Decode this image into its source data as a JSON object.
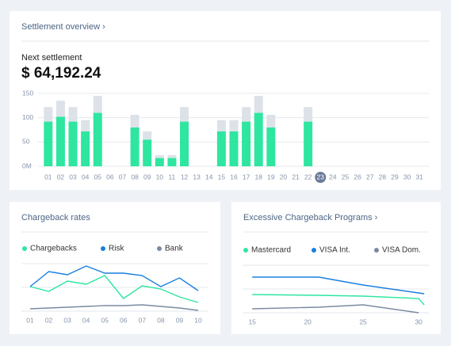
{
  "chart_data": [
    {
      "type": "bar",
      "stacked": true,
      "title": "Settlement overview ›",
      "subtitle": "Next settlement",
      "annotation": "$ 64,192.24",
      "categories": [
        "01",
        "02",
        "03",
        "04",
        "05",
        "06",
        "07",
        "08",
        "09",
        "10",
        "11",
        "12",
        "13",
        "14",
        "15",
        "16",
        "17",
        "18",
        "19",
        "20",
        "21",
        "22",
        "23",
        "24",
        "25",
        "26",
        "27",
        "28",
        "29",
        "30",
        "31"
      ],
      "selected_category": "23",
      "series": [
        {
          "color": "#2ee6a0",
          "values": [
            92,
            102,
            92,
            72,
            110,
            null,
            null,
            80,
            55,
            17,
            17,
            92,
            null,
            null,
            72,
            72,
            92,
            110,
            80,
            null,
            null,
            92,
            null,
            null,
            null,
            null,
            null,
            null,
            null,
            null,
            null
          ]
        },
        {
          "color": "#dde2e8",
          "values": [
            30,
            33,
            30,
            23,
            35,
            null,
            null,
            26,
            17,
            6,
            6,
            30,
            null,
            null,
            23,
            23,
            30,
            35,
            26,
            null,
            null,
            30,
            null,
            null,
            null,
            null,
            null,
            null,
            null,
            null,
            null
          ]
        }
      ],
      "ylim": [
        0,
        150
      ],
      "yticks": [
        {
          "value": 0,
          "label": "0M"
        },
        50,
        100,
        150
      ],
      "grid": true
    },
    {
      "type": "line",
      "title": "Chargeback rates",
      "legend": "top",
      "categories": [
        "01",
        "02",
        "03",
        "04",
        "05",
        "06",
        "07",
        "08",
        "09",
        "10"
      ],
      "series": [
        {
          "name": "Chargebacks",
          "color": "#2ee6a0",
          "values": [
            31,
            25,
            38,
            34,
            45,
            16,
            32,
            28,
            18,
            11
          ]
        },
        {
          "name": "Risk",
          "color": "#1a7fe0",
          "values": [
            31,
            50,
            46,
            57,
            48,
            48,
            45,
            31,
            42,
            26
          ]
        },
        {
          "name": "Bank",
          "color": "#7b8aa0",
          "values": [
            3,
            4,
            5,
            6,
            7,
            7,
            8,
            6,
            4,
            1
          ]
        }
      ],
      "ylim": [
        0,
        60
      ],
      "yticks": [
        0,
        30,
        60
      ],
      "grid": true
    },
    {
      "type": "line",
      "title": "Excessive Chargeback Programs ›",
      "legend": "top",
      "x": [
        15,
        21,
        25,
        30,
        30.5
      ],
      "series": [
        {
          "name": "Mastercard",
          "color": "#2ee6a0",
          "values": [
            23,
            22,
            21,
            18,
            10
          ]
        },
        {
          "name": "VISA Int.",
          "color": "#1a7fe0",
          "values": [
            45,
            45,
            35,
            25,
            24
          ]
        },
        {
          "name": "VISA Dom.",
          "color": "#7b8aa0",
          "values": [
            5,
            7,
            10,
            0,
            null
          ]
        }
      ],
      "xlim": [
        14.7,
        30.7
      ],
      "xticks": [
        15,
        20,
        25,
        30
      ],
      "ylim": [
        0,
        60
      ],
      "yticks": [
        0,
        30,
        60
      ],
      "grid": true
    }
  ]
}
